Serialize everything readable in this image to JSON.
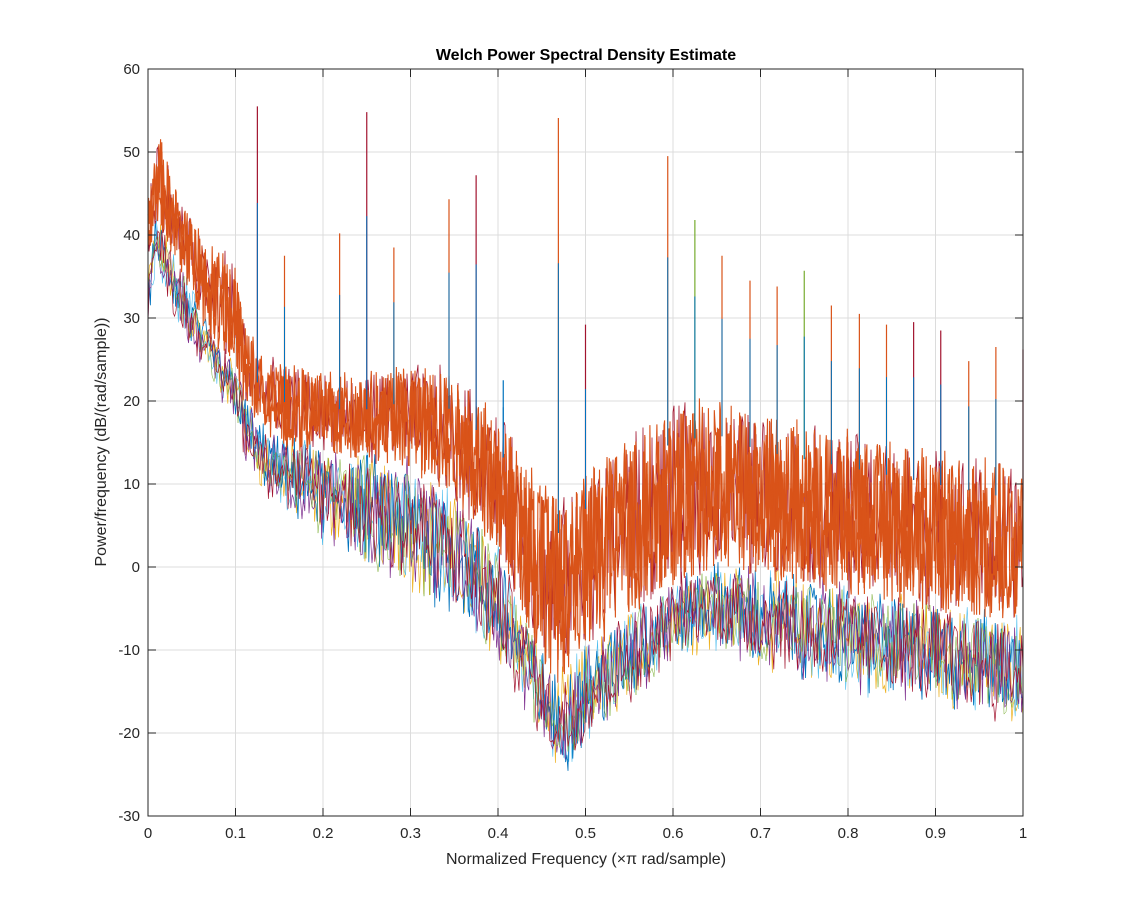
{
  "chart_data": {
    "type": "line",
    "title": "Welch Power Spectral Density Estimate",
    "xlabel": "Normalized Frequency  (×π rad/sample)",
    "ylabel": "Power/frequency (dB/(rad/sample))",
    "xlim": [
      0,
      1
    ],
    "ylim": [
      -30,
      60
    ],
    "xticks": [
      0,
      0.1,
      0.2,
      0.3,
      0.4,
      0.5,
      0.6,
      0.7,
      0.8,
      0.9,
      1
    ],
    "xtick_labels": [
      "0",
      "0.1",
      "0.2",
      "0.3",
      "0.4",
      "0.5",
      "0.6",
      "0.7",
      "0.8",
      "0.9",
      "1"
    ],
    "yticks": [
      -30,
      -20,
      -10,
      0,
      10,
      20,
      30,
      40,
      50,
      60
    ],
    "ytick_labels": [
      "-30",
      "-20",
      "-10",
      "0",
      "10",
      "20",
      "30",
      "40",
      "50",
      "60"
    ],
    "grid": true,
    "series_colors": [
      "#0072BD",
      "#D95319",
      "#EDB120",
      "#7E2F8E",
      "#77AC30",
      "#4DBEEE",
      "#A2142F"
    ],
    "envelope": {
      "x": [
        0,
        0.01,
        0.03,
        0.05,
        0.07,
        0.085,
        0.1,
        0.11,
        0.13,
        0.15,
        0.2,
        0.25,
        0.3,
        0.33,
        0.36,
        0.4,
        0.43,
        0.46,
        0.47,
        0.48,
        0.5,
        0.55,
        0.6,
        0.65,
        0.7,
        0.75,
        0.8,
        0.85,
        0.9,
        0.95,
        1.0
      ],
      "upper": [
        45,
        53,
        46,
        42,
        38,
        39,
        36,
        30,
        25,
        24,
        23,
        23,
        24,
        24,
        22,
        18,
        14,
        9,
        8,
        8,
        11,
        16,
        19,
        20,
        18,
        17,
        16,
        15,
        14,
        13,
        12
      ],
      "orange_lower": [
        36,
        42,
        37,
        33,
        28,
        26,
        24,
        20,
        17,
        15,
        14,
        13,
        12,
        10,
        7,
        2,
        -6,
        -13,
        -14,
        -12,
        -10,
        -6,
        -2,
        0,
        -1,
        -2,
        -3,
        -4,
        -5,
        -6,
        -7
      ],
      "lower": [
        30,
        37,
        31,
        27,
        24,
        21,
        19,
        14,
        10,
        8,
        4,
        1,
        -2,
        -4,
        -6,
        -11,
        -16,
        -22,
        -24,
        -24,
        -20,
        -16,
        -10,
        -9,
        -11,
        -13,
        -14,
        -15,
        -16,
        -17,
        -18
      ]
    },
    "spikes": [
      {
        "x": 0.125,
        "y": 55.5,
        "color": "#A2142F"
      },
      {
        "x": 0.156,
        "y": 37.5,
        "color": "#D95319"
      },
      {
        "x": 0.219,
        "y": 40.2,
        "color": "#D95319"
      },
      {
        "x": 0.25,
        "y": 54.8,
        "color": "#A2142F"
      },
      {
        "x": 0.281,
        "y": 38.5,
        "color": "#D95319"
      },
      {
        "x": 0.344,
        "y": 44.3,
        "color": "#D95319"
      },
      {
        "x": 0.375,
        "y": 47.2,
        "color": "#A2142F"
      },
      {
        "x": 0.406,
        "y": 22.5,
        "color": "#0072BD"
      },
      {
        "x": 0.469,
        "y": 54.1,
        "color": "#D95319"
      },
      {
        "x": 0.5,
        "y": 29.2,
        "color": "#A2142F"
      },
      {
        "x": 0.594,
        "y": 49.5,
        "color": "#D95319"
      },
      {
        "x": 0.625,
        "y": 41.8,
        "color": "#77AC30"
      },
      {
        "x": 0.656,
        "y": 37.5,
        "color": "#D95319"
      },
      {
        "x": 0.688,
        "y": 34.5,
        "color": "#D95319"
      },
      {
        "x": 0.719,
        "y": 33.8,
        "color": "#D95319"
      },
      {
        "x": 0.75,
        "y": 35.7,
        "color": "#77AC30"
      },
      {
        "x": 0.781,
        "y": 31.5,
        "color": "#D95319"
      },
      {
        "x": 0.813,
        "y": 30.5,
        "color": "#D95319"
      },
      {
        "x": 0.844,
        "y": 29.2,
        "color": "#D95319"
      },
      {
        "x": 0.875,
        "y": 29.5,
        "color": "#A2142F"
      },
      {
        "x": 0.906,
        "y": 28.5,
        "color": "#A2142F"
      },
      {
        "x": 0.938,
        "y": 24.8,
        "color": "#D95319"
      },
      {
        "x": 0.969,
        "y": 26.5,
        "color": "#D95319"
      },
      {
        "x": 1.0,
        "y": 26.2,
        "color": "#A2142F"
      }
    ]
  }
}
